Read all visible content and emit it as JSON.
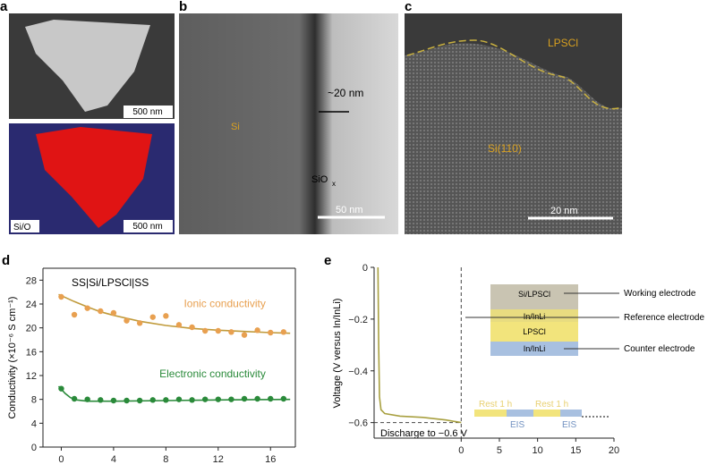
{
  "panels": {
    "a": {
      "label": "a",
      "scale_top": "500 nm",
      "scale_bottom": "500 nm",
      "map_label": "Si/O"
    },
    "b": {
      "label": "b",
      "core": "Si",
      "thickness": "~20 nm",
      "oxide": "SiO",
      "oxide_sub": "x",
      "scale": "50 nm"
    },
    "c": {
      "label": "c",
      "electrolyte": "LPSCl",
      "crystal": "Si(110)",
      "scale": "20 nm"
    }
  },
  "chart_data": [
    {
      "type": "scatter",
      "panel": "d",
      "title": "SS|Si/LPSCl|SS",
      "ylabel": "Conductivity (×10⁻⁶ S cm⁻¹)",
      "xlim": [
        -1.4,
        17.9
      ],
      "ylim": [
        0,
        30
      ],
      "xticks": [
        0,
        4,
        8,
        12,
        16
      ],
      "yticks": [
        0,
        4,
        8,
        12,
        16,
        20,
        24,
        28
      ],
      "series": [
        {
          "name": "Ionic conductivity",
          "color": "#e8a050",
          "x": [
            0,
            1,
            2,
            3,
            4,
            5,
            6,
            7,
            8,
            9,
            10,
            11,
            12,
            13,
            14,
            15,
            16,
            17
          ],
          "values": [
            25.2,
            22.2,
            23.3,
            22.8,
            22.5,
            21.2,
            20.8,
            21.8,
            22,
            20.5,
            20.1,
            19.5,
            19.5,
            19.3,
            18.8,
            19.6,
            19.2,
            19.3
          ],
          "fit": {
            "color": "#c09a3a",
            "x": [
              -0.2,
              1,
              2,
              3,
              4,
              6,
              8,
              10,
              12,
              14,
              16,
              17.5
            ],
            "values": [
              25.6,
              24.4,
              23.5,
              22.7,
              22.1,
              21.1,
              20.4,
              19.9,
              19.6,
              19.4,
              19.2,
              19.1
            ]
          }
        },
        {
          "name": "Electronic conductivity",
          "color": "#2a8a3a",
          "x": [
            0,
            1,
            2,
            3,
            4,
            5,
            6,
            7,
            8,
            9,
            10,
            11,
            12,
            13,
            14,
            15,
            16,
            17
          ],
          "values": [
            9.8,
            8.1,
            8,
            7.9,
            7.8,
            7.8,
            7.8,
            7.9,
            7.9,
            8,
            7.9,
            8,
            8,
            8,
            8.1,
            8.1,
            8.1,
            8.1
          ],
          "fit": {
            "color": "#2a8a3a",
            "x": [
              -0.2,
              0.3,
              0.7,
              1.2,
              2,
              4,
              8,
              12,
              17.5
            ],
            "values": [
              10.2,
              9,
              8.3,
              7.9,
              7.7,
              7.7,
              7.8,
              7.9,
              8
            ]
          }
        }
      ]
    },
    {
      "type": "line",
      "panel": "e",
      "ylabel": "Voltage (V versus In/InLi)",
      "xlim": [
        -11.4,
        20
      ],
      "ylim": [
        -0.66,
        0
      ],
      "xticks": [
        0,
        5,
        10,
        15,
        20
      ],
      "yticks": [
        0,
        {
          "value": -0.2,
          "label": "−0.2"
        },
        {
          "value": -0.4,
          "label": "−0.4"
        },
        {
          "value": -0.6,
          "label": "−0.6"
        }
      ],
      "series": [
        {
          "color": "#a8a040",
          "x": [
            -10.9,
            -10.8,
            -10.7,
            -10.5,
            -10,
            -8,
            -5,
            -2,
            0
          ],
          "values": [
            0,
            -0.3,
            -0.5,
            -0.55,
            -0.565,
            -0.575,
            -0.58,
            -0.59,
            -0.6
          ]
        }
      ],
      "reference_x": 0,
      "reference_y": -0.6,
      "annotation": "Discharge to −0.6 V",
      "inset": {
        "layers": [
          "Si/LPSCl",
          "In/InLi",
          "LPSCl",
          "In/InLi"
        ],
        "electrodes": [
          "Working electrode",
          "Reference electrode",
          "Counter electrode"
        ],
        "timeline": [
          "Rest 1 h",
          "EIS",
          "Rest 1 h",
          "EIS"
        ]
      }
    }
  ]
}
